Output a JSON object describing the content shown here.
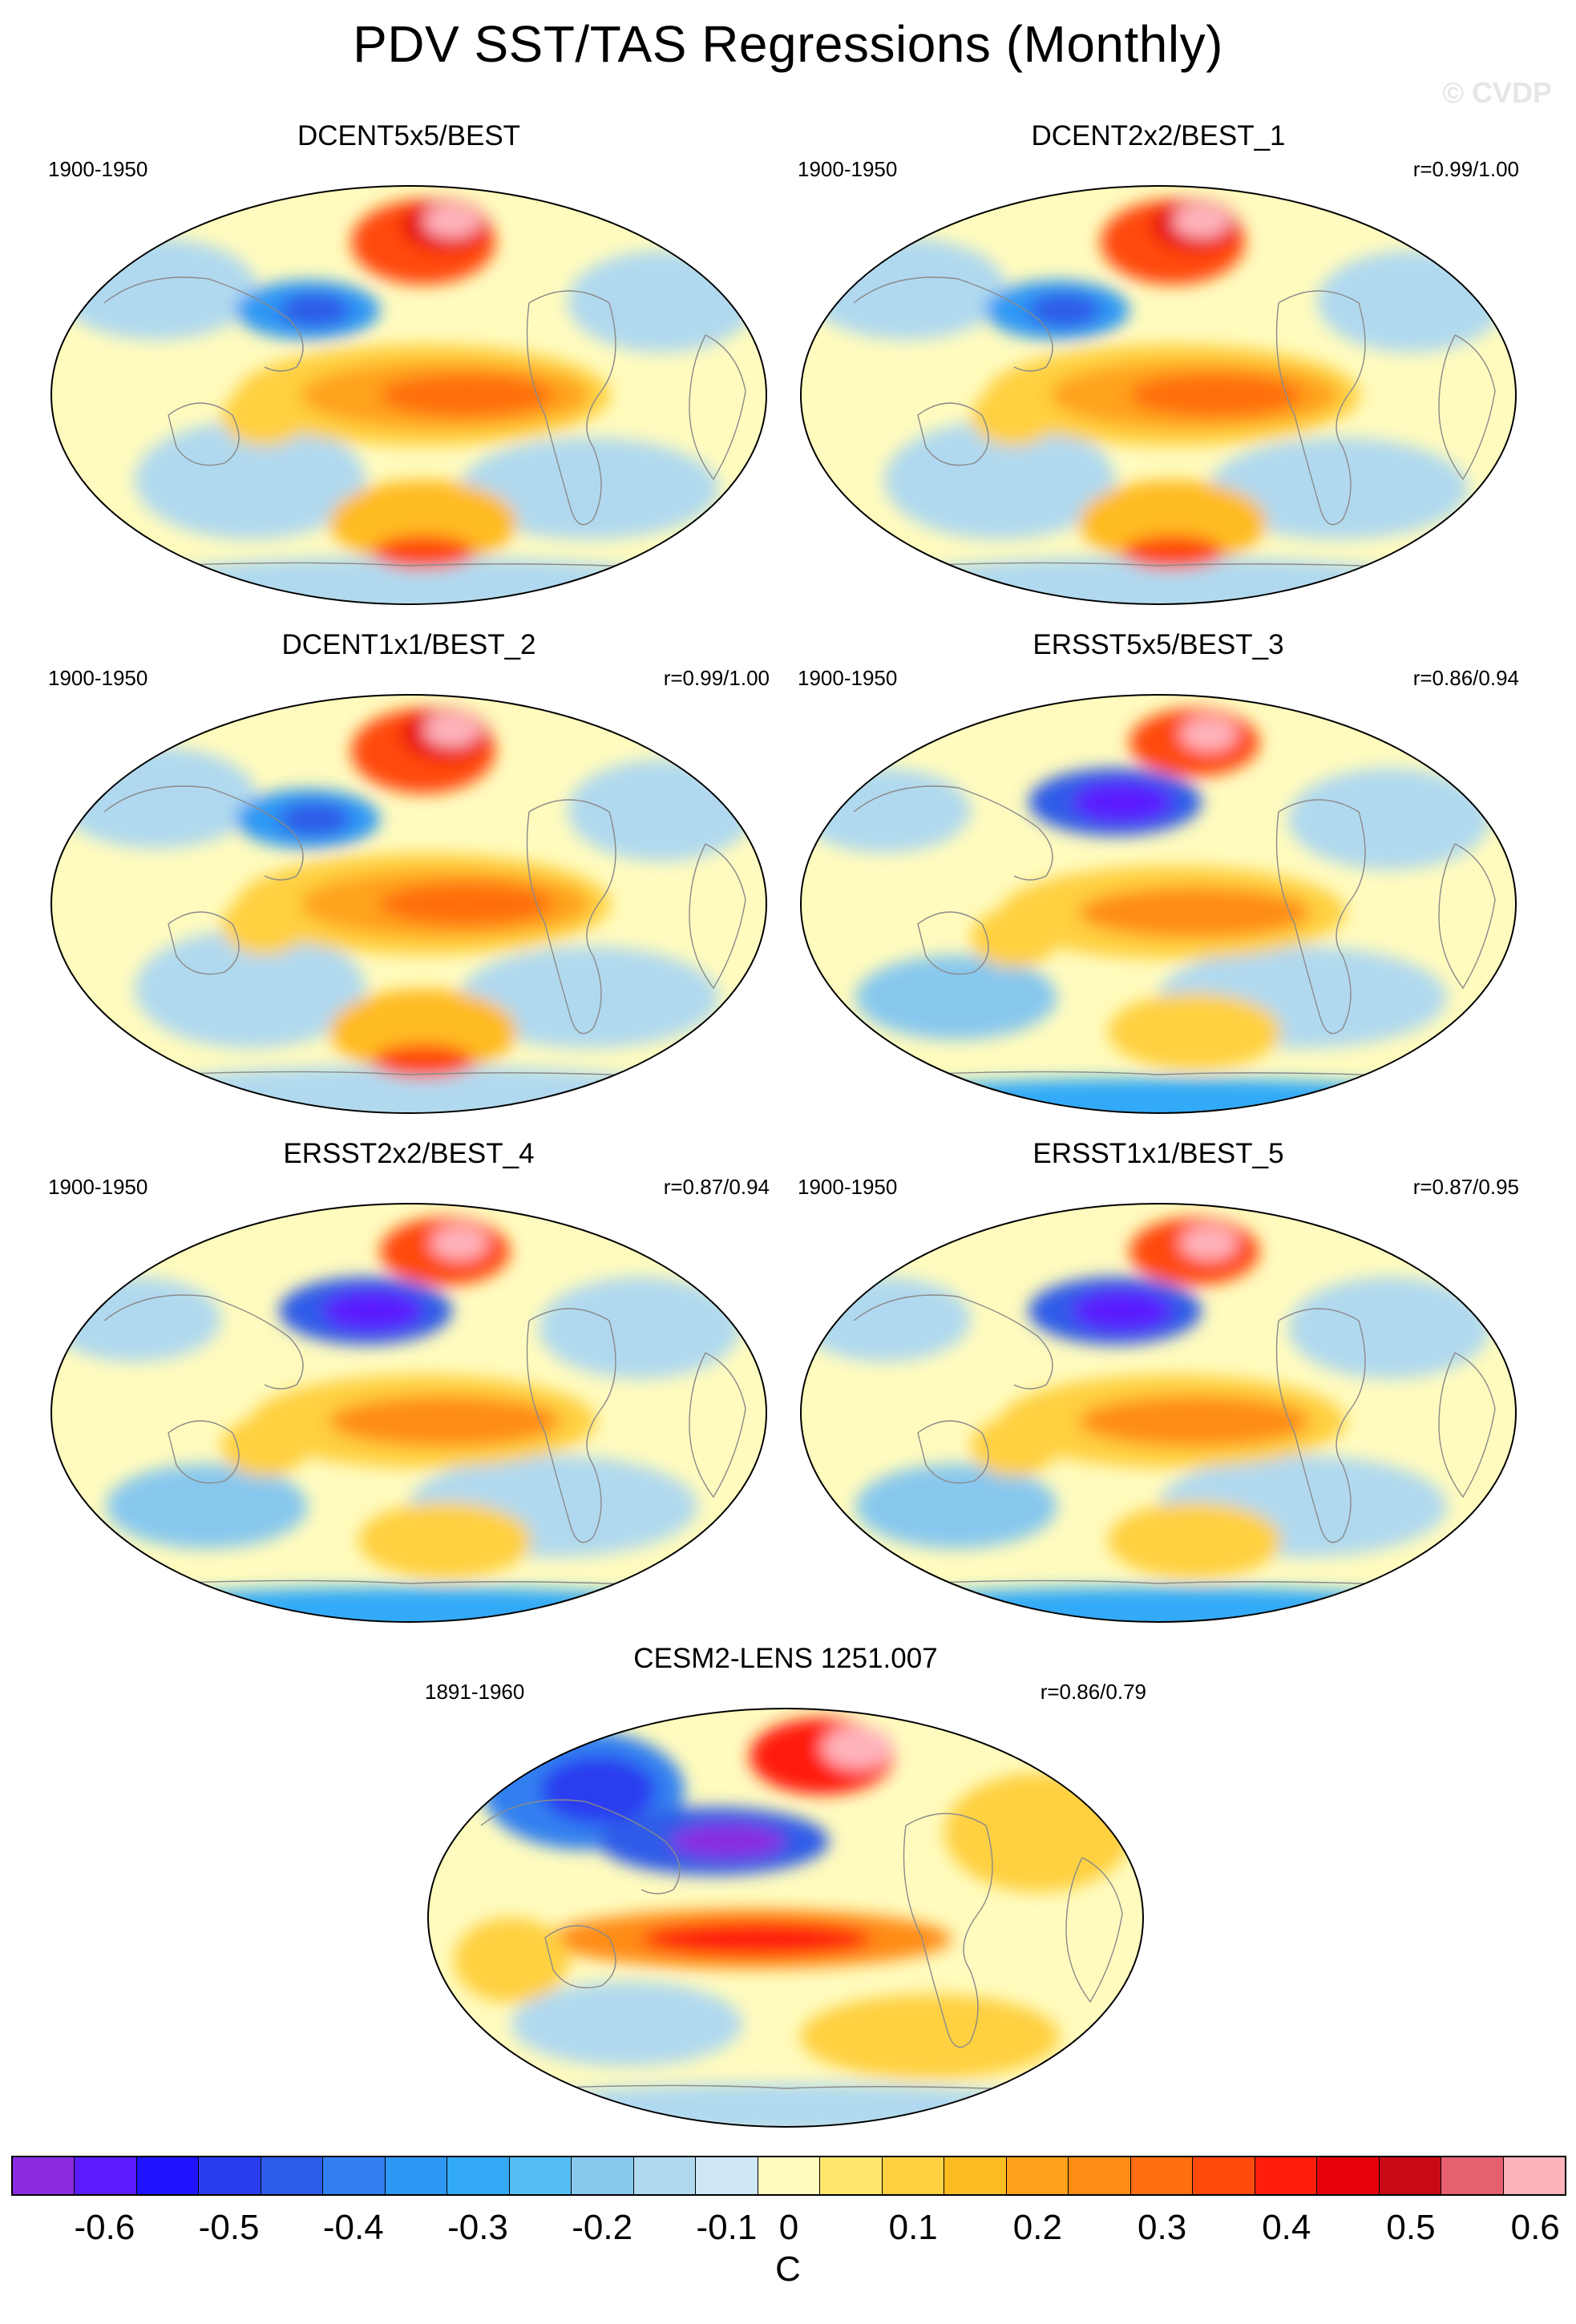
{
  "title": "PDV SST/TAS Regressions (Monthly)",
  "watermark": "© CVDP",
  "panels": [
    {
      "title": "DCENT5x5/BEST",
      "period": "1900-1950",
      "corr": "",
      "pattern": "dcent"
    },
    {
      "title": "DCENT2x2/BEST_1",
      "period": "1900-1950",
      "corr": "r=0.99/1.00",
      "pattern": "dcent"
    },
    {
      "title": "DCENT1x1/BEST_2",
      "period": "1900-1950",
      "corr": "r=0.99/1.00",
      "pattern": "dcent"
    },
    {
      "title": "ERSST5x5/BEST_3",
      "period": "1900-1950",
      "corr": "r=0.86/0.94",
      "pattern": "ersst"
    },
    {
      "title": "ERSST2x2/BEST_4",
      "period": "1900-1950",
      "corr": "r=0.87/0.94",
      "pattern": "ersst"
    },
    {
      "title": "ERSST1x1/BEST_5",
      "period": "1900-1950",
      "corr": "r=0.87/0.95",
      "pattern": "ersst"
    },
    {
      "title": "CESM2-LENS 1251.007",
      "period": "1891-1960",
      "corr": "r=0.86/0.79",
      "pattern": "cesm"
    }
  ],
  "colorbar": {
    "unit": "C",
    "labels": [
      "-0.6",
      "-0.5",
      "-0.4",
      "-0.3",
      "-0.2",
      "-0.1",
      "0",
      "0.1",
      "0.2",
      "0.3",
      "0.4",
      "0.5",
      "0.6"
    ],
    "colors": [
      "#8a2be2",
      "#5a1cff",
      "#1e14ff",
      "#2a3cf0",
      "#2d5ce8",
      "#3380f0",
      "#2e98f5",
      "#33aaf8",
      "#55bff5",
      "#88c8ee",
      "#b0d9ef",
      "#cfe7f5",
      "#fffbbe",
      "#ffe66d",
      "#ffd040",
      "#ffbb22",
      "#ffa21a",
      "#ff8c14",
      "#ff6e10",
      "#ff4a0c",
      "#ff1e0a",
      "#e6000a",
      "#c80a14",
      "#e66070",
      "#ffb4bc"
    ]
  }
}
